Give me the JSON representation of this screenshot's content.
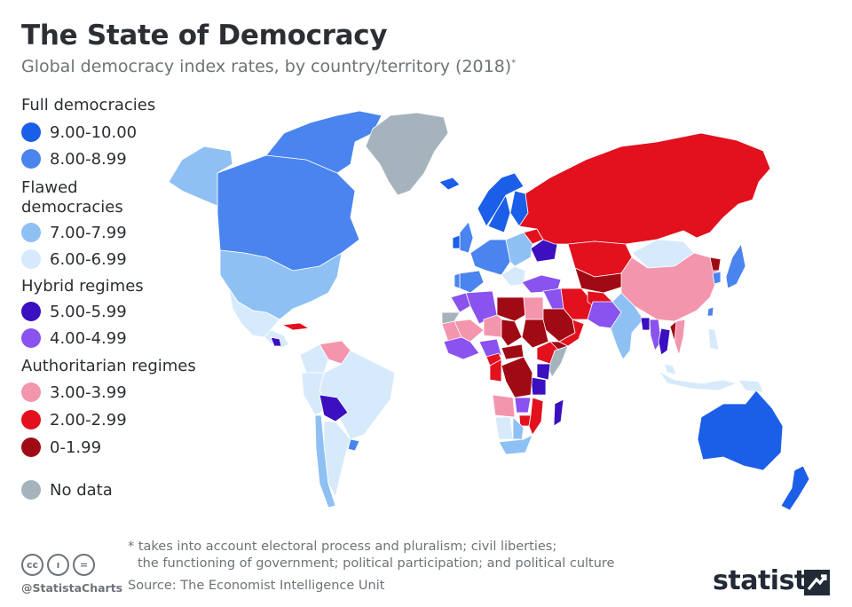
{
  "title": "The State of Democracy",
  "subtitle": "Global democracy index rates, by country/territory (2018)",
  "subtitle_mark": "*",
  "legend": {
    "groups": [
      {
        "heading": "Full democracies",
        "items": [
          {
            "label": "9.00-10.00",
            "color": "#1b5ee8"
          },
          {
            "label": "8.00-8.99",
            "color": "#4a84ef"
          }
        ]
      },
      {
        "heading": "Flawed democracies",
        "heading_lines": [
          "Flawed",
          "democracies"
        ],
        "items": [
          {
            "label": "7.00-7.99",
            "color": "#8fc0f4"
          },
          {
            "label": "6.00-6.99",
            "color": "#d7eafc"
          }
        ]
      },
      {
        "heading": "Hybrid regimes",
        "items": [
          {
            "label": "5.00-5.99",
            "color": "#3a10c0"
          },
          {
            "label": "4.00-4.99",
            "color": "#8a52ee"
          }
        ]
      },
      {
        "heading": "Authoritarian regimes",
        "items": [
          {
            "label": "3.00-3.99",
            "color": "#f395ad"
          },
          {
            "label": "2.00-2.99",
            "color": "#e3101e"
          },
          {
            "label": "0-1.99",
            "color": "#a00a14"
          }
        ]
      }
    ],
    "no_data": {
      "label": "No data",
      "color": "#a5b4bc"
    }
  },
  "footnote": {
    "line1": "* takes into account electoral process and pluralism; civil liberties;",
    "line2": "the functioning of government; political participation; and political culture"
  },
  "source": "Source: The Economist Intelligence Unit",
  "credits": {
    "handle": "@StatistaCharts",
    "icons": [
      "cc-icon",
      "attribution-icon",
      "no-derivatives-icon"
    ],
    "icon_glyphs": [
      "cc",
      "ı",
      "="
    ]
  },
  "brand": "statista",
  "map_regions": [
    {
      "name": "Canada",
      "color": "#4a84ef"
    },
    {
      "name": "Canadian Arctic Islands",
      "color": "#4a84ef"
    },
    {
      "name": "Alaska",
      "color": "#8fc0f4"
    },
    {
      "name": "Greenland",
      "color": "#a5b4bc"
    },
    {
      "name": "United States",
      "color": "#8fc0f4"
    },
    {
      "name": "Mexico",
      "color": "#d7eafc"
    },
    {
      "name": "Central America",
      "color": "#d7eafc"
    },
    {
      "name": "Nicaragua",
      "color": "#3a10c0"
    },
    {
      "name": "Cuba",
      "color": "#e3101e"
    },
    {
      "name": "Venezuela",
      "color": "#f395ad"
    },
    {
      "name": "Colombia",
      "color": "#d7eafc"
    },
    {
      "name": "Brazil",
      "color": "#d7eafc"
    },
    {
      "name": "Peru",
      "color": "#d7eafc"
    },
    {
      "name": "Bolivia",
      "color": "#3a10c0"
    },
    {
      "name": "Chile",
      "color": "#8fc0f4"
    },
    {
      "name": "Argentina",
      "color": "#d7eafc"
    },
    {
      "name": "Uruguay",
      "color": "#4a84ef"
    },
    {
      "name": "Iceland",
      "color": "#1b5ee8"
    },
    {
      "name": "Norway",
      "color": "#1b5ee8"
    },
    {
      "name": "Sweden",
      "color": "#1b5ee8"
    },
    {
      "name": "Finland",
      "color": "#1b5ee8"
    },
    {
      "name": "UK",
      "color": "#4a84ef"
    },
    {
      "name": "Ireland",
      "color": "#1b5ee8"
    },
    {
      "name": "Western Europe",
      "color": "#4a84ef"
    },
    {
      "name": "Spain",
      "color": "#4a84ef"
    },
    {
      "name": "Portugal",
      "color": "#4a84ef"
    },
    {
      "name": "Eastern Europe",
      "color": "#8fc0f4"
    },
    {
      "name": "Balkans",
      "color": "#d7eafc"
    },
    {
      "name": "Belarus",
      "color": "#e3101e"
    },
    {
      "name": "Ukraine",
      "color": "#3a10c0"
    },
    {
      "name": "Turkey",
      "color": "#8a52ee"
    },
    {
      "name": "Russia",
      "color": "#e3101e"
    },
    {
      "name": "Kazakhstan",
      "color": "#e3101e"
    },
    {
      "name": "Central Asia",
      "color": "#a00a14"
    },
    {
      "name": "Mongolia",
      "color": "#d7eafc"
    },
    {
      "name": "China",
      "color": "#f395ad"
    },
    {
      "name": "North Korea",
      "color": "#a00a14"
    },
    {
      "name": "South Korea",
      "color": "#4a84ef"
    },
    {
      "name": "Japan",
      "color": "#4a84ef"
    },
    {
      "name": "Taiwan",
      "color": "#4a84ef"
    },
    {
      "name": "Iran",
      "color": "#e3101e"
    },
    {
      "name": "Iraq",
      "color": "#8a52ee"
    },
    {
      "name": "Saudi Arabia",
      "color": "#a00a14"
    },
    {
      "name": "Yemen",
      "color": "#a00a14"
    },
    {
      "name": "Oman",
      "color": "#e3101e"
    },
    {
      "name": "Afghanistan",
      "color": "#e3101e"
    },
    {
      "name": "Pakistan",
      "color": "#8a52ee"
    },
    {
      "name": "India",
      "color": "#8fc0f4"
    },
    {
      "name": "Bangladesh",
      "color": "#3a10c0"
    },
    {
      "name": "Myanmar",
      "color": "#8a52ee"
    },
    {
      "name": "Thailand",
      "color": "#3a10c0"
    },
    {
      "name": "Laos",
      "color": "#a00a14"
    },
    {
      "name": "Vietnam",
      "color": "#f395ad"
    },
    {
      "name": "Malaysia",
      "color": "#d7eafc"
    },
    {
      "name": "Indonesia",
      "color": "#d7eafc"
    },
    {
      "name": "Philippines",
      "color": "#d7eafc"
    },
    {
      "name": "Papua New Guinea",
      "color": "#d7eafc"
    },
    {
      "name": "Australia",
      "color": "#1b5ee8"
    },
    {
      "name": "New Zealand",
      "color": "#1b5ee8"
    },
    {
      "name": "Morocco",
      "color": "#8a52ee"
    },
    {
      "name": "Algeria",
      "color": "#8a52ee"
    },
    {
      "name": "Western Sahara",
      "color": "#a5b4bc"
    },
    {
      "name": "Mauritania",
      "color": "#f395ad"
    },
    {
      "name": "Mali",
      "color": "#f395ad"
    },
    {
      "name": "Niger",
      "color": "#f395ad"
    },
    {
      "name": "Libya",
      "color": "#a00a14"
    },
    {
      "name": "Egypt",
      "color": "#f395ad"
    },
    {
      "name": "Chad",
      "color": "#a00a14"
    },
    {
      "name": "Sudan",
      "color": "#a00a14"
    },
    {
      "name": "Ethiopia",
      "color": "#e3101e"
    },
    {
      "name": "Somalia",
      "color": "#a5b4bc"
    },
    {
      "name": "Kenya",
      "color": "#3a10c0"
    },
    {
      "name": "Tanzania",
      "color": "#3a10c0"
    },
    {
      "name": "Nigeria",
      "color": "#8a52ee"
    },
    {
      "name": "West Africa",
      "color": "#8a52ee"
    },
    {
      "name": "Central African Republic",
      "color": "#a00a14"
    },
    {
      "name": "DR Congo",
      "color": "#a00a14"
    },
    {
      "name": "Congo",
      "color": "#e3101e"
    },
    {
      "name": "Cameroon",
      "color": "#e3101e"
    },
    {
      "name": "Angola",
      "color": "#f395ad"
    },
    {
      "name": "Zambia",
      "color": "#8a52ee"
    },
    {
      "name": "Zimbabwe",
      "color": "#e3101e"
    },
    {
      "name": "Mozambique",
      "color": "#e3101e"
    },
    {
      "name": "Namibia",
      "color": "#d7eafc"
    },
    {
      "name": "Botswana",
      "color": "#8fc0f4"
    },
    {
      "name": "South Africa",
      "color": "#8fc0f4"
    },
    {
      "name": "Madagascar",
      "color": "#3a10c0"
    }
  ]
}
